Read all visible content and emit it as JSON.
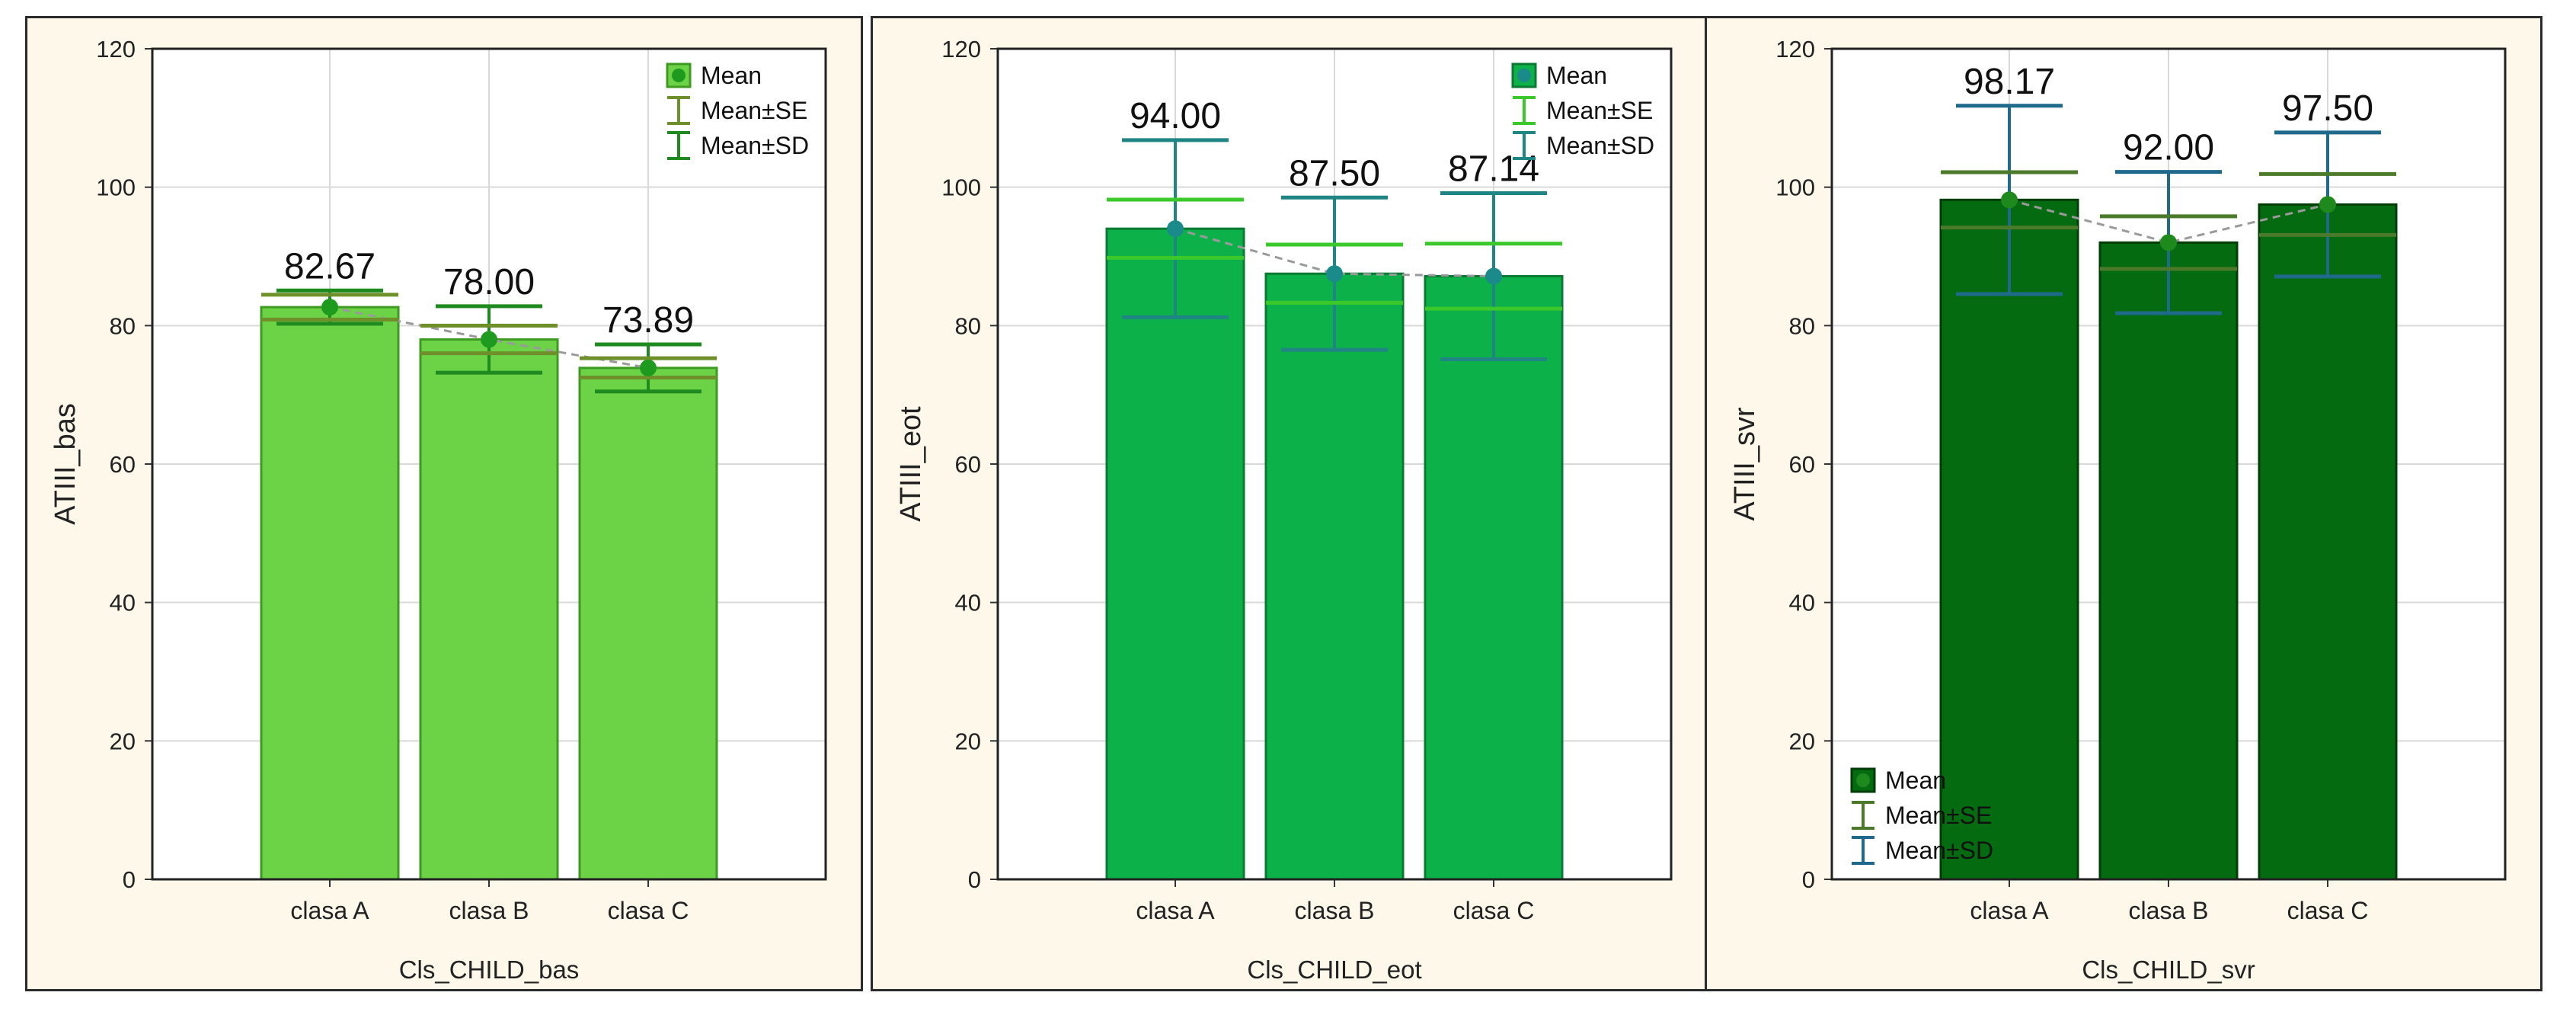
{
  "chart_data": [
    {
      "type": "bar",
      "categories": [
        "clasa A",
        "clasa B",
        "clasa C"
      ],
      "values": [
        82.67,
        78.0,
        73.89
      ],
      "value_labels": [
        "82.67",
        "78.00",
        "73.89"
      ],
      "se": [
        1.8,
        2.0,
        1.4
      ],
      "sd": [
        2.4,
        4.8,
        3.4
      ],
      "xlabel": "Cls_CHILD_bas",
      "ylabel": "ATIII_bas",
      "ylim": [
        0,
        120
      ],
      "yticks": [
        "0",
        "20",
        "40",
        "60",
        "80",
        "100",
        "120"
      ],
      "legend": [
        "Mean",
        "Mean±SE",
        "Mean±SD"
      ],
      "legend_position": "top-right",
      "colors": {
        "bar": "#6cd347",
        "bar_stroke": "#3f9a22",
        "se": "#6e8f2a",
        "sd": "#1f8a1f",
        "mean": "#1e9a1e"
      }
    },
    {
      "type": "bar",
      "categories": [
        "clasa A",
        "clasa B",
        "clasa C"
      ],
      "values": [
        94.0,
        87.5,
        87.14
      ],
      "value_labels": [
        "94.00",
        "87.50",
        "87.14"
      ],
      "se": [
        4.2,
        4.2,
        4.7
      ],
      "sd": [
        12.8,
        11.0,
        12.0
      ],
      "xlabel": "Cls_CHILD_eot",
      "ylabel": "ATIII_eot",
      "ylim": [
        0,
        120
      ],
      "yticks": [
        "0",
        "20",
        "40",
        "60",
        "80",
        "100",
        "120"
      ],
      "legend": [
        "Mean",
        "Mean±SE",
        "Mean±SD"
      ],
      "legend_position": "top-right",
      "colors": {
        "bar": "#0db14a",
        "bar_stroke": "#0a7a33",
        "se": "#3bc82a",
        "sd": "#1f8585",
        "mean": "#1a8a8a"
      }
    },
    {
      "type": "bar",
      "categories": [
        "clasa A",
        "clasa B",
        "clasa C"
      ],
      "values": [
        98.17,
        92.0,
        97.5
      ],
      "value_labels": [
        "98.17",
        "92.00",
        "97.50"
      ],
      "se": [
        4.0,
        3.8,
        4.4
      ],
      "sd": [
        13.6,
        10.2,
        10.4
      ],
      "xlabel": "Cls_CHILD_svr",
      "ylabel": "ATIII_svr",
      "ylim": [
        0,
        120
      ],
      "yticks": [
        "0",
        "20",
        "40",
        "60",
        "80",
        "100",
        "120"
      ],
      "legend": [
        "Mean",
        "Mean±SE",
        "Mean±SD"
      ],
      "legend_position": "bottom-left",
      "colors": {
        "bar": "#056b10",
        "bar_stroke": "#023d08",
        "se": "#4a7a2a",
        "sd": "#1f6a8a",
        "mean": "#1e8a1e"
      }
    }
  ]
}
